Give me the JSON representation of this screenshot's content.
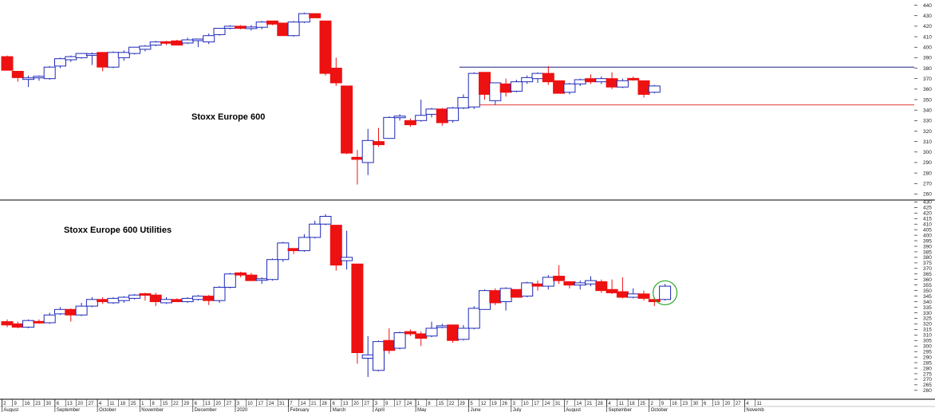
{
  "colors": {
    "up": "#1f2ab8",
    "down": "#ee1111",
    "resistance": "#1a237e",
    "support": "#e53935",
    "highlight": "#2aa72a",
    "axis": "#000000"
  },
  "chart_data": [
    {
      "type": "candlestick",
      "title": "Stoxx Europe 600",
      "ylim": [
        255,
        445
      ],
      "yticks": [
        260,
        270,
        280,
        290,
        300,
        310,
        320,
        330,
        340,
        350,
        360,
        370,
        380,
        390,
        400,
        410,
        420,
        430,
        440
      ],
      "hlines": [
        {
          "value": 381,
          "from_index": 43,
          "color": "resistance"
        },
        {
          "value": 345,
          "from_index": 44,
          "color": "support"
        }
      ],
      "candles": [
        {
          "o": 391,
          "h": 392,
          "l": 378,
          "c": 378
        },
        {
          "o": 377,
          "h": 377,
          "l": 367,
          "c": 371
        },
        {
          "o": 370,
          "h": 373,
          "l": 362,
          "c": 370
        },
        {
          "o": 371,
          "h": 373,
          "l": 368,
          "c": 372
        },
        {
          "o": 370,
          "h": 382,
          "l": 369,
          "c": 381
        },
        {
          "o": 382,
          "h": 390,
          "l": 380,
          "c": 389
        },
        {
          "o": 388,
          "h": 392,
          "l": 386,
          "c": 391
        },
        {
          "o": 390,
          "h": 394,
          "l": 389,
          "c": 394
        },
        {
          "o": 393,
          "h": 395,
          "l": 383,
          "c": 393
        },
        {
          "o": 395,
          "h": 395,
          "l": 377,
          "c": 381
        },
        {
          "o": 381,
          "h": 396,
          "l": 380,
          "c": 395
        },
        {
          "o": 390,
          "h": 397,
          "l": 387,
          "c": 395
        },
        {
          "o": 394,
          "h": 400,
          "l": 393,
          "c": 400
        },
        {
          "o": 398,
          "h": 402,
          "l": 396,
          "c": 401
        },
        {
          "o": 402,
          "h": 406,
          "l": 401,
          "c": 405
        },
        {
          "o": 405,
          "h": 406,
          "l": 402,
          "c": 404
        },
        {
          "o": 406,
          "h": 407,
          "l": 403,
          "c": 402
        },
        {
          "o": 404,
          "h": 409,
          "l": 403,
          "c": 407
        },
        {
          "o": 407,
          "h": 408,
          "l": 400,
          "c": 407
        },
        {
          "o": 405,
          "h": 413,
          "l": 403,
          "c": 411
        },
        {
          "o": 412,
          "h": 418,
          "l": 411,
          "c": 418
        },
        {
          "o": 418,
          "h": 421,
          "l": 417,
          "c": 420
        },
        {
          "o": 420,
          "h": 421,
          "l": 417,
          "c": 418
        },
        {
          "o": 418,
          "h": 421,
          "l": 416,
          "c": 419
        },
        {
          "o": 419,
          "h": 425,
          "l": 417,
          "c": 424
        },
        {
          "o": 425,
          "h": 425,
          "l": 421,
          "c": 422
        },
        {
          "o": 423,
          "h": 423,
          "l": 411,
          "c": 411
        },
        {
          "o": 411,
          "h": 425,
          "l": 410,
          "c": 424
        },
        {
          "o": 424,
          "h": 433,
          "l": 423,
          "c": 432
        },
        {
          "o": 432,
          "h": 432,
          "l": 428,
          "c": 428
        },
        {
          "o": 425,
          "h": 425,
          "l": 373,
          "c": 375
        },
        {
          "o": 380,
          "h": 390,
          "l": 363,
          "c": 366
        },
        {
          "o": 363,
          "h": 363,
          "l": 298,
          "c": 299
        },
        {
          "o": 295,
          "h": 302,
          "l": 269,
          "c": 293
        },
        {
          "o": 290,
          "h": 322,
          "l": 278,
          "c": 311
        },
        {
          "o": 310,
          "h": 323,
          "l": 305,
          "c": 307
        },
        {
          "o": 313,
          "h": 334,
          "l": 313,
          "c": 333
        },
        {
          "o": 333,
          "h": 336,
          "l": 330,
          "c": 334
        },
        {
          "o": 330,
          "h": 332,
          "l": 324,
          "c": 326
        },
        {
          "o": 330,
          "h": 350,
          "l": 329,
          "c": 335
        },
        {
          "o": 336,
          "h": 342,
          "l": 333,
          "c": 341
        },
        {
          "o": 341,
          "h": 342,
          "l": 325,
          "c": 328
        },
        {
          "o": 330,
          "h": 343,
          "l": 328,
          "c": 342
        },
        {
          "o": 342,
          "h": 355,
          "l": 341,
          "c": 352
        },
        {
          "o": 343,
          "h": 376,
          "l": 341,
          "c": 375
        },
        {
          "o": 376,
          "h": 376,
          "l": 350,
          "c": 355
        },
        {
          "o": 349,
          "h": 366,
          "l": 345,
          "c": 366
        },
        {
          "o": 365,
          "h": 370,
          "l": 353,
          "c": 357
        },
        {
          "o": 358,
          "h": 369,
          "l": 357,
          "c": 367
        },
        {
          "o": 367,
          "h": 373,
          "l": 365,
          "c": 371
        },
        {
          "o": 370,
          "h": 376,
          "l": 366,
          "c": 375
        },
        {
          "o": 375,
          "h": 382,
          "l": 364,
          "c": 367
        },
        {
          "o": 368,
          "h": 368,
          "l": 356,
          "c": 356
        },
        {
          "o": 357,
          "h": 366,
          "l": 355,
          "c": 365
        },
        {
          "o": 365,
          "h": 370,
          "l": 363,
          "c": 369
        },
        {
          "o": 370,
          "h": 374,
          "l": 365,
          "c": 367
        },
        {
          "o": 367,
          "h": 372,
          "l": 365,
          "c": 370
        },
        {
          "o": 370,
          "h": 376,
          "l": 360,
          "c": 362
        },
        {
          "o": 362,
          "h": 370,
          "l": 361,
          "c": 368
        },
        {
          "o": 370,
          "h": 372,
          "l": 368,
          "c": 369
        },
        {
          "o": 368,
          "h": 368,
          "l": 352,
          "c": 355
        },
        {
          "o": 357,
          "h": 364,
          "l": 356,
          "c": 363
        }
      ]
    },
    {
      "type": "candlestick",
      "title": "Stoxx Europe 600 Utilities",
      "ylim": [
        257,
        431
      ],
      "yticks": [
        260,
        265,
        270,
        275,
        280,
        285,
        290,
        295,
        300,
        305,
        310,
        315,
        320,
        325,
        330,
        335,
        340,
        345,
        350,
        355,
        360,
        365,
        370,
        375,
        380,
        385,
        390,
        395,
        400,
        405,
        410,
        415,
        420,
        425,
        430
      ],
      "candles": [
        {
          "o": 322,
          "h": 324,
          "l": 317,
          "c": 319
        },
        {
          "o": 320,
          "h": 322,
          "l": 316,
          "c": 317
        },
        {
          "o": 317,
          "h": 324,
          "l": 316,
          "c": 323
        },
        {
          "o": 322,
          "h": 324,
          "l": 320,
          "c": 321
        },
        {
          "o": 321,
          "h": 330,
          "l": 320,
          "c": 328
        },
        {
          "o": 329,
          "h": 335,
          "l": 328,
          "c": 333
        },
        {
          "o": 333,
          "h": 334,
          "l": 322,
          "c": 328
        },
        {
          "o": 328,
          "h": 339,
          "l": 327,
          "c": 336
        },
        {
          "o": 336,
          "h": 344,
          "l": 335,
          "c": 342
        },
        {
          "o": 342,
          "h": 344,
          "l": 338,
          "c": 340
        },
        {
          "o": 339,
          "h": 344,
          "l": 338,
          "c": 343
        },
        {
          "o": 341,
          "h": 345,
          "l": 339,
          "c": 344
        },
        {
          "o": 343,
          "h": 347,
          "l": 342,
          "c": 346
        },
        {
          "o": 347,
          "h": 348,
          "l": 341,
          "c": 346
        },
        {
          "o": 346,
          "h": 348,
          "l": 336,
          "c": 340
        },
        {
          "o": 339,
          "h": 344,
          "l": 338,
          "c": 342
        },
        {
          "o": 342,
          "h": 343,
          "l": 340,
          "c": 340
        },
        {
          "o": 340,
          "h": 344,
          "l": 339,
          "c": 343
        },
        {
          "o": 342,
          "h": 346,
          "l": 341,
          "c": 345
        },
        {
          "o": 345,
          "h": 346,
          "l": 337,
          "c": 341
        },
        {
          "o": 341,
          "h": 354,
          "l": 339,
          "c": 353
        },
        {
          "o": 353,
          "h": 366,
          "l": 352,
          "c": 365
        },
        {
          "o": 366,
          "h": 367,
          "l": 362,
          "c": 364
        },
        {
          "o": 364,
          "h": 366,
          "l": 359,
          "c": 359
        },
        {
          "o": 360,
          "h": 362,
          "l": 356,
          "c": 360
        },
        {
          "o": 360,
          "h": 379,
          "l": 359,
          "c": 378
        },
        {
          "o": 378,
          "h": 394,
          "l": 376,
          "c": 393
        },
        {
          "o": 388,
          "h": 388,
          "l": 383,
          "c": 386
        },
        {
          "o": 386,
          "h": 401,
          "l": 385,
          "c": 398
        },
        {
          "o": 398,
          "h": 413,
          "l": 397,
          "c": 410
        },
        {
          "o": 410,
          "h": 419,
          "l": 409,
          "c": 417
        },
        {
          "o": 409,
          "h": 409,
          "l": 368,
          "c": 373
        },
        {
          "o": 377,
          "h": 404,
          "l": 369,
          "c": 380
        },
        {
          "o": 374,
          "h": 374,
          "l": 284,
          "c": 294
        },
        {
          "o": 289,
          "h": 309,
          "l": 272,
          "c": 292
        },
        {
          "o": 278,
          "h": 305,
          "l": 277,
          "c": 304
        },
        {
          "o": 305,
          "h": 316,
          "l": 293,
          "c": 296
        },
        {
          "o": 298,
          "h": 313,
          "l": 297,
          "c": 312
        },
        {
          "o": 313,
          "h": 315,
          "l": 309,
          "c": 311
        },
        {
          "o": 311,
          "h": 313,
          "l": 300,
          "c": 307
        },
        {
          "o": 309,
          "h": 322,
          "l": 308,
          "c": 316
        },
        {
          "o": 317,
          "h": 320,
          "l": 316,
          "c": 318
        },
        {
          "o": 319,
          "h": 319,
          "l": 303,
          "c": 305
        },
        {
          "o": 306,
          "h": 319,
          "l": 305,
          "c": 316
        },
        {
          "o": 316,
          "h": 336,
          "l": 315,
          "c": 334
        },
        {
          "o": 333,
          "h": 351,
          "l": 333,
          "c": 350
        },
        {
          "o": 350,
          "h": 352,
          "l": 337,
          "c": 339
        },
        {
          "o": 340,
          "h": 353,
          "l": 332,
          "c": 352
        },
        {
          "o": 351,
          "h": 351,
          "l": 344,
          "c": 344
        },
        {
          "o": 345,
          "h": 358,
          "l": 344,
          "c": 357
        },
        {
          "o": 356,
          "h": 359,
          "l": 350,
          "c": 354
        },
        {
          "o": 354,
          "h": 364,
          "l": 351,
          "c": 362
        },
        {
          "o": 363,
          "h": 373,
          "l": 356,
          "c": 359
        },
        {
          "o": 358,
          "h": 358,
          "l": 352,
          "c": 355
        },
        {
          "o": 355,
          "h": 359,
          "l": 351,
          "c": 357
        },
        {
          "o": 356,
          "h": 363,
          "l": 354,
          "c": 359
        },
        {
          "o": 358,
          "h": 360,
          "l": 348,
          "c": 350
        },
        {
          "o": 351,
          "h": 360,
          "l": 347,
          "c": 348
        },
        {
          "o": 349,
          "h": 362,
          "l": 343,
          "c": 344
        },
        {
          "o": 344,
          "h": 352,
          "l": 343,
          "c": 347
        },
        {
          "o": 347,
          "h": 350,
          "l": 341,
          "c": 343
        },
        {
          "o": 342,
          "h": 344,
          "l": 336,
          "c": 340
        },
        {
          "o": 342,
          "h": 356,
          "l": 341,
          "c": 354
        }
      ]
    }
  ],
  "x_axis": {
    "days": [
      "2",
      "9",
      "16",
      "23",
      "30",
      "6",
      "13",
      "20",
      "27",
      "4",
      "11",
      "18",
      "25",
      "1",
      "8",
      "15",
      "22",
      "29",
      "6",
      "13",
      "20",
      "27",
      "3",
      "10",
      "17",
      "24",
      "31",
      "7",
      "14",
      "21",
      "28",
      "6",
      "13",
      "20",
      "27",
      "3",
      "9",
      "17",
      "24",
      "1",
      "8",
      "15",
      "22",
      "29",
      "5",
      "12",
      "19",
      "26",
      "3",
      "10",
      "17",
      "24",
      "31",
      "7",
      "14",
      "21",
      "28",
      "4",
      "11",
      "18",
      "25",
      "2",
      "9",
      "16",
      "23",
      "30",
      "6",
      "13",
      "20",
      "27",
      "4",
      "11"
    ],
    "months": [
      {
        "label": "August",
        "index": 0
      },
      {
        "label": "September",
        "index": 5
      },
      {
        "label": "October",
        "index": 9
      },
      {
        "label": "November",
        "index": 13
      },
      {
        "label": "December",
        "index": 18
      },
      {
        "label": "2020",
        "index": 22
      },
      {
        "label": "February",
        "index": 27
      },
      {
        "label": "March",
        "index": 31
      },
      {
        "label": "April",
        "index": 35
      },
      {
        "label": "May",
        "index": 39
      },
      {
        "label": "June",
        "index": 44
      },
      {
        "label": "July",
        "index": 48
      },
      {
        "label": "August",
        "index": 53
      },
      {
        "label": "September",
        "index": 57
      },
      {
        "label": "October",
        "index": 61
      },
      {
        "label": "Novemb",
        "index": 70
      }
    ]
  }
}
